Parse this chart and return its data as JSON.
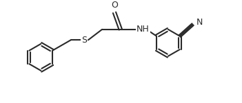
{
  "bg_color": "#ffffff",
  "line_color": "#2a2a2a",
  "text_color": "#2a2a2a",
  "line_width": 1.5,
  "font_size": 9.0,
  "figsize": [
    3.51,
    1.5
  ],
  "dpi": 100,
  "xlim": [
    0,
    10.0
  ],
  "ylim": [
    0,
    4.3
  ]
}
